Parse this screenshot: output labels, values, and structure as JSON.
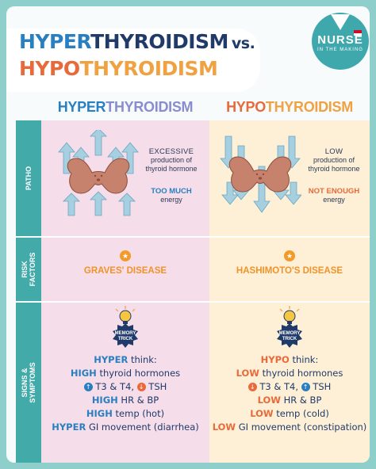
{
  "header": {
    "title_line1_part1": "HYPER",
    "title_line1_part2": "THYROIDISM",
    "title_vs": "vs.",
    "title_line2_part1": "HYPO",
    "title_line2_part2": "THYROIDISM"
  },
  "logo": {
    "name": "NURSE",
    "tagline": "IN THE MAKING",
    "icon": "heart-v-icon",
    "flag_colors": [
      "#c8102e",
      "#ffffff"
    ]
  },
  "columns": {
    "hyper": {
      "part1": "HYPER",
      "part2": "THYROIDISM"
    },
    "hypo": {
      "part1": "HYPO",
      "part2": "THYROIDISM"
    }
  },
  "rows": {
    "patho": "PATHO",
    "risk": "RISK FACTORS",
    "signs": "SIGNS & SYMPTOMS"
  },
  "patho": {
    "hyper": {
      "level": "EXCESSIVE",
      "line2": "production of",
      "line3": "thyroid hormone",
      "energy_level": "TOO MUCH",
      "energy": "energy",
      "icon": "thyroid-arrows-up-icon"
    },
    "hypo": {
      "level": "LOW",
      "line2": "production of",
      "line3": "thyroid hormone",
      "energy_level": "NOT ENOUGH",
      "energy": "energy",
      "icon": "thyroid-arrows-down-icon"
    }
  },
  "risk": {
    "hyper": "GRAVES' DISEASE",
    "hypo": "HASHIMOTO'S DISEASE",
    "icon": "star-badge-icon"
  },
  "memory_trick": {
    "line1": "MEMORY",
    "line2": "TRICK",
    "icon": "lightbulb-icon"
  },
  "signs": {
    "hyper": {
      "l1_key": "HYPER",
      "l1_rest": " think:",
      "l2_key": "HIGH",
      "l2_rest": " thyroid hormones",
      "l3_up": "↑",
      "l3_a": " T3 & T4, ",
      "l3_down": "↓",
      "l3_b": " TSH",
      "l4_key": "HIGH",
      "l4_rest": " HR & BP",
      "l5_key": "HIGH",
      "l5_rest": " temp (hot)",
      "l6_key": "HYPER",
      "l6_rest": " GI movement (diarrhea)"
    },
    "hypo": {
      "l1_key": "HYPO",
      "l1_rest": " think:",
      "l2_key": "LOW",
      "l2_rest": " thyroid hormones",
      "l3_down": "↓",
      "l3_a": " T3 & T4, ",
      "l3_up": "↑",
      "l3_b": " TSH",
      "l4_key": "LOW",
      "l4_rest": " HR & BP",
      "l5_key": "LOW",
      "l5_rest": " temp (cold)",
      "l6_key": "LOW",
      "l6_rest": " GI movement (constipation)"
    }
  },
  "colors": {
    "hyper": "#2a7fc1",
    "hypo": "#e86a3a",
    "accent_teal": "#43aaaa",
    "risk_orange": "#f0932a"
  }
}
